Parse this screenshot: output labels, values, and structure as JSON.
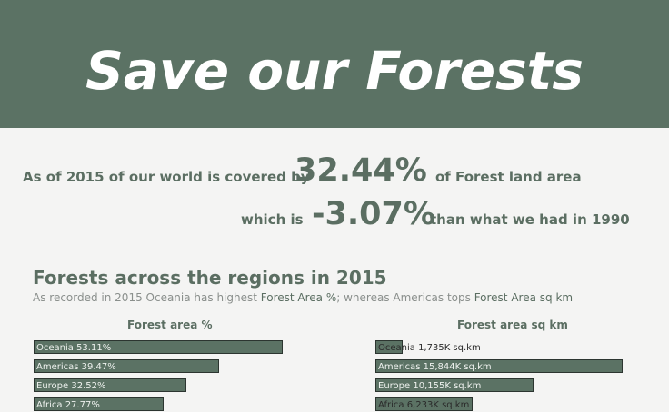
{
  "header": {
    "title": "Save our Forests"
  },
  "stats": {
    "line1_prefix": "As of 2015 of our world is covered by",
    "line1_value": "32.44%",
    "line1_suffix": "of Forest land area",
    "line2_prefix": "which is",
    "line2_value": "-3.07%",
    "line2_suffix": "than what we had in 1990"
  },
  "section": {
    "title": "Forests across the regions in 2015",
    "subtitle_part1": "As recorded in 2015 Oceania has  highest ",
    "subtitle_em1": "Forest Area %",
    "subtitle_part2": "; whereas Americas tops  ",
    "subtitle_em2": "Forest Area sq km"
  },
  "colors": {
    "header": "#5b7264",
    "bar": "#5b7264",
    "text": "#5b6e62",
    "background": "#f4f4f3"
  },
  "chart_data": [
    {
      "type": "bar",
      "orientation": "horizontal",
      "title": "Forest area %",
      "categories": [
        "Oceania",
        "Americas",
        "Europe",
        "Africa"
      ],
      "values": [
        53.11,
        39.47,
        32.52,
        27.77
      ],
      "labels": [
        "Oceania  53.11%",
        "Americas  39.47%",
        "Europe  32.52%",
        "Africa  27.77%"
      ]
    },
    {
      "type": "bar",
      "orientation": "horizontal",
      "title": "Forest area sq km",
      "categories": [
        "Oceania",
        "Americas",
        "Europe",
        "Africa"
      ],
      "values": [
        1735,
        15844,
        10155,
        6233
      ],
      "labels": [
        "Oceania  1,735K sq.km",
        "Americas  15,844K sq.km",
        "Europe  10,155K sq.km",
        "Africa  6,233K sq.km"
      ]
    }
  ]
}
